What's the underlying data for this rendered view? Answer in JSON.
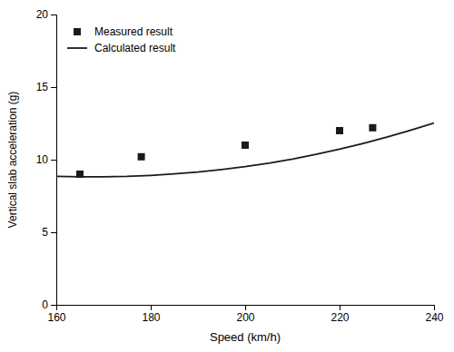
{
  "chart_data": {
    "type": "line",
    "xlabel": "Speed  (km/h)",
    "ylabel": "Vertical slab acceleration (g)",
    "series": [
      {
        "name": "Measured result",
        "type": "scatter",
        "marker": "square",
        "color": "#1a1a1a",
        "x": [
          165,
          178,
          200,
          220,
          227
        ],
        "values": [
          9.0,
          10.2,
          11.0,
          12.0,
          12.2
        ]
      },
      {
        "name": "Calculated result",
        "type": "line",
        "line_style": "solid",
        "color": "#1a1a1a",
        "x": [
          160,
          165,
          170,
          175,
          180,
          185,
          190,
          195,
          200,
          205,
          210,
          215,
          220,
          225,
          230,
          235,
          240
        ],
        "values": [
          8.85,
          8.82,
          8.82,
          8.85,
          8.92,
          9.02,
          9.15,
          9.32,
          9.52,
          9.76,
          10.04,
          10.36,
          10.72,
          11.12,
          11.55,
          12.02,
          12.52
        ]
      }
    ],
    "xlim": [
      160,
      240
    ],
    "ylim": [
      0,
      20
    ],
    "xticks": [
      160,
      180,
      200,
      220,
      240
    ],
    "yticks": [
      0,
      5,
      10,
      15,
      20
    ],
    "grid": false,
    "legend": "upper-left"
  }
}
